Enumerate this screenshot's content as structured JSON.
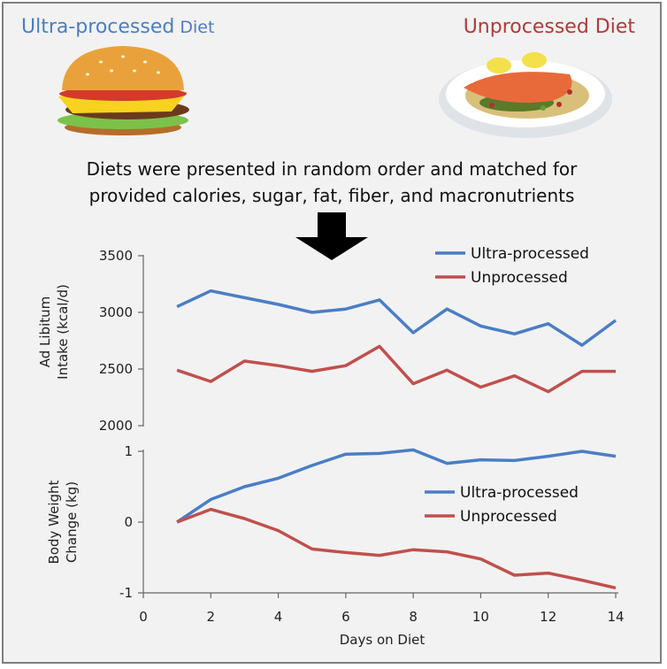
{
  "header": {
    "left_title_main": "Ultra-processed",
    "left_title_small": " Diet",
    "right_title": "Unprocessed Diet",
    "caption_line1": "Diets were presented in random order and matched for",
    "caption_line2": "provided calories, sugar, fat, fiber, and macronutrients"
  },
  "icons": {
    "left": "burger-icon",
    "right": "salmon-plate-icon",
    "arrow": "arrow-down-icon"
  },
  "colors": {
    "ultra": "#4a7ec5",
    "unproc": "#c0504d"
  },
  "chart_data": [
    {
      "type": "line",
      "ylabel_line1": "Ad Libitum",
      "ylabel_line2": "Intake (kcal/d)",
      "xlabel": "",
      "ylim": [
        2000,
        3500
      ],
      "yticks": [
        "3500",
        "3000",
        "2500",
        "2000"
      ],
      "ytick_values": [
        3500,
        3000,
        2500,
        2000
      ],
      "xlim": [
        0,
        14
      ],
      "legend_position": "top-right",
      "x": [
        1,
        2,
        3,
        4,
        5,
        6,
        7,
        8,
        9,
        10,
        11,
        12,
        13,
        14
      ],
      "series": [
        {
          "name": "Ultra-processed",
          "values": [
            3050,
            3190,
            3130,
            3070,
            3000,
            3030,
            3110,
            2820,
            3030,
            2880,
            2810,
            2900,
            2710,
            2930
          ]
        },
        {
          "name": "Unprocessed",
          "values": [
            2490,
            2390,
            2570,
            2530,
            2480,
            2530,
            2700,
            2370,
            2490,
            2340,
            2440,
            2300,
            2480,
            2480
          ]
        }
      ]
    },
    {
      "type": "line",
      "ylabel_line1": "Body Weight",
      "ylabel_line2": "Change (kg)",
      "xlabel": "Days on Diet",
      "ylim": [
        -1,
        1
      ],
      "yticks": [
        "1",
        "0",
        "-1"
      ],
      "ytick_values": [
        1,
        0,
        -1
      ],
      "xlim": [
        0,
        14
      ],
      "xticks": [
        "0",
        "2",
        "4",
        "6",
        "8",
        "10",
        "12",
        "14"
      ],
      "xtick_values": [
        0,
        2,
        4,
        6,
        8,
        10,
        12,
        14
      ],
      "legend_position": "right",
      "x": [
        1,
        2,
        3,
        4,
        5,
        6,
        7,
        8,
        9,
        10,
        11,
        12,
        13,
        14
      ],
      "series": [
        {
          "name": "Ultra-processed",
          "values": [
            0,
            0.32,
            0.5,
            0.62,
            0.8,
            0.96,
            0.97,
            1.02,
            0.83,
            0.88,
            0.87,
            0.93,
            1.0,
            0.93
          ]
        },
        {
          "name": "Unprocessed",
          "values": [
            0,
            0.18,
            0.05,
            -0.12,
            -0.38,
            -0.43,
            -0.47,
            -0.39,
            -0.42,
            -0.52,
            -0.75,
            -0.72,
            -0.82,
            -0.93
          ]
        }
      ]
    }
  ]
}
